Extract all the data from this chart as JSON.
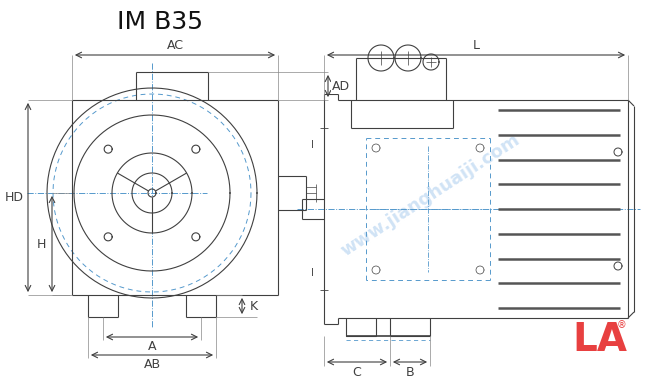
{
  "title": "IM B35",
  "bg_color": "#ffffff",
  "line_color": "#404040",
  "dim_color": "#404040",
  "dash_color": "#5599cc",
  "label_color": "#404040",
  "watermark_color": "#aaccee",
  "watermark_text": "www.jianghuaiji.com",
  "logo_text": "LA",
  "logo_color": "#e84040",
  "registered_color": "#e84040"
}
